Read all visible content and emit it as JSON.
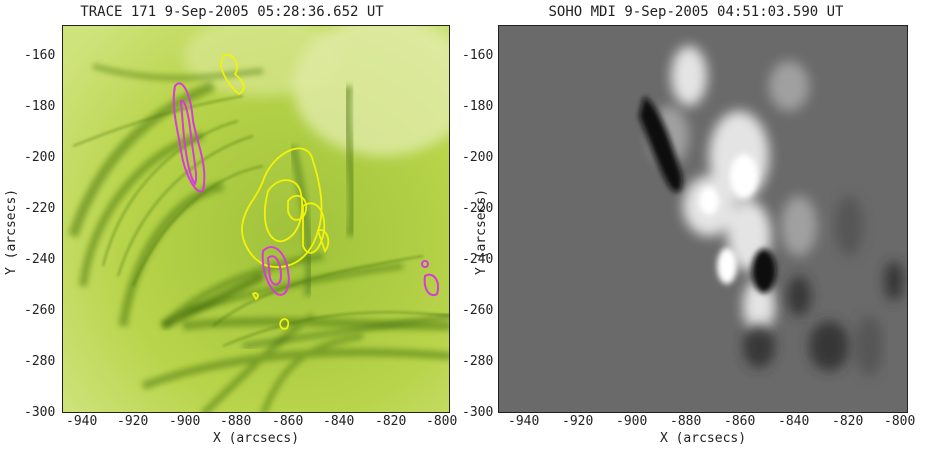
{
  "left_panel": {
    "title": "TRACE 171   9-Sep-2005 05:28:36.652 UT",
    "xlabel": "X (arcsecs)",
    "ylabel": "Y (arcsecs)",
    "x_ticks": [
      "-940",
      "-920",
      "-900",
      "-880",
      "-860",
      "-840",
      "-820",
      "-800"
    ],
    "y_ticks": [
      "-160",
      "-180",
      "-200",
      "-220",
      "-240",
      "-260",
      "-280",
      "-300"
    ],
    "x_range": [
      -950,
      -800
    ],
    "y_range": [
      -302,
      -150
    ],
    "colormap": "green",
    "contour_colors": {
      "positive": "#f2f20a",
      "negative": "#d93ad9"
    }
  },
  "right_panel": {
    "title": "SOHO MDI   9-Sep-2005 04:51:03.590 UT",
    "xlabel": "X (arcsecs)",
    "ylabel": "Y (arcsecs)",
    "x_ticks": [
      "-940",
      "-920",
      "-900",
      "-880",
      "-860",
      "-840",
      "-820",
      "-800"
    ],
    "y_ticks": [
      "-160",
      "-180",
      "-200",
      "-220",
      "-240",
      "-260",
      "-280",
      "-300"
    ],
    "x_range": [
      -952,
      -800
    ],
    "y_range": [
      -302,
      -150
    ],
    "colormap": "grayscale"
  }
}
